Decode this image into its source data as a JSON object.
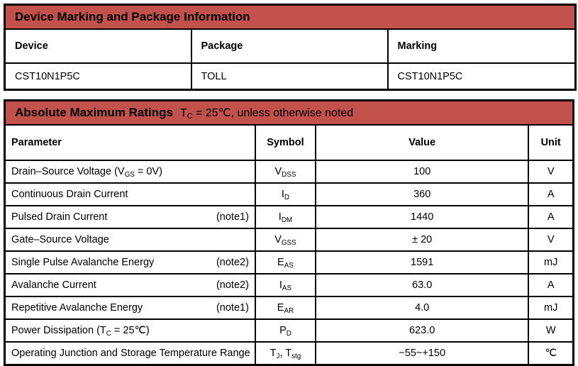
{
  "colors": {
    "header_red": "#c1514a",
    "border": "#000000",
    "text": "#000000",
    "background": "#ffffff"
  },
  "device_table": {
    "title": "Device Marking and Package Information",
    "columns": [
      "Device",
      "Package",
      "Marking"
    ],
    "rows": [
      [
        "CST10N1P5C",
        "TOLL",
        "CST10N1P5C"
      ]
    ]
  },
  "abs_max_table": {
    "title_main": "Absolute Maximum Ratings",
    "title_cond": [
      {
        "t": "T"
      },
      {
        "t": "C",
        "sub": true
      },
      {
        "t": " = 25℃, unless otherwise noted"
      }
    ],
    "columns": [
      "Parameter",
      "Symbol",
      "Value",
      "Unit"
    ],
    "rows": [
      {
        "parameter": [
          {
            "t": "Drain–Source Voltage (V"
          },
          {
            "t": "GS",
            "sub": true
          },
          {
            "t": " = 0V)"
          }
        ],
        "note": "",
        "symbol": [
          {
            "t": "V"
          },
          {
            "t": "DSS",
            "sub": true
          }
        ],
        "value": "100",
        "unit": "V"
      },
      {
        "parameter": [
          {
            "t": "Continuous Drain Current"
          }
        ],
        "note": "",
        "symbol": [
          {
            "t": "I"
          },
          {
            "t": "D",
            "sub": true
          }
        ],
        "value": "360",
        "unit": "A"
      },
      {
        "parameter": [
          {
            "t": "Pulsed Drain Current"
          }
        ],
        "note": "(note1)",
        "symbol": [
          {
            "t": "I"
          },
          {
            "t": "DM",
            "sub": true
          }
        ],
        "value": "1440",
        "unit": "A"
      },
      {
        "parameter": [
          {
            "t": "Gate–Source Voltage"
          }
        ],
        "note": "",
        "symbol": [
          {
            "t": "V"
          },
          {
            "t": "GSS",
            "sub": true
          }
        ],
        "value": "± 20",
        "unit": "V"
      },
      {
        "parameter": [
          {
            "t": "Single Pulse Avalanche Energy"
          }
        ],
        "note": "(note2)",
        "symbol": [
          {
            "t": "E"
          },
          {
            "t": "AS",
            "sub": true
          }
        ],
        "value": "1591",
        "unit": "mJ"
      },
      {
        "parameter": [
          {
            "t": "Avalanche Current"
          }
        ],
        "note": "(note2)",
        "symbol": [
          {
            "t": "I"
          },
          {
            "t": "AS",
            "sub": true
          }
        ],
        "value": "63.0",
        "unit": "A"
      },
      {
        "parameter": [
          {
            "t": "Repetitive Avalanche Energy"
          }
        ],
        "note": "(note1)",
        "symbol": [
          {
            "t": "E"
          },
          {
            "t": "AR",
            "sub": true
          }
        ],
        "value": "4.0",
        "unit": "mJ"
      },
      {
        "parameter": [
          {
            "t": "Power Dissipation (T"
          },
          {
            "t": "C",
            "sub": true
          },
          {
            "t": " = 25℃)"
          }
        ],
        "note": "",
        "symbol": [
          {
            "t": "P"
          },
          {
            "t": "D",
            "sub": true
          }
        ],
        "value": "623.0",
        "unit": "W"
      },
      {
        "parameter": [
          {
            "t": "Operating Junction and Storage Temperature Range"
          }
        ],
        "note": "",
        "symbol": [
          {
            "t": "T"
          },
          {
            "t": "J",
            "sub": true
          },
          {
            "t": ", T"
          },
          {
            "t": "stg",
            "sub": true
          }
        ],
        "value": "−55~+150",
        "unit": "℃"
      }
    ]
  }
}
